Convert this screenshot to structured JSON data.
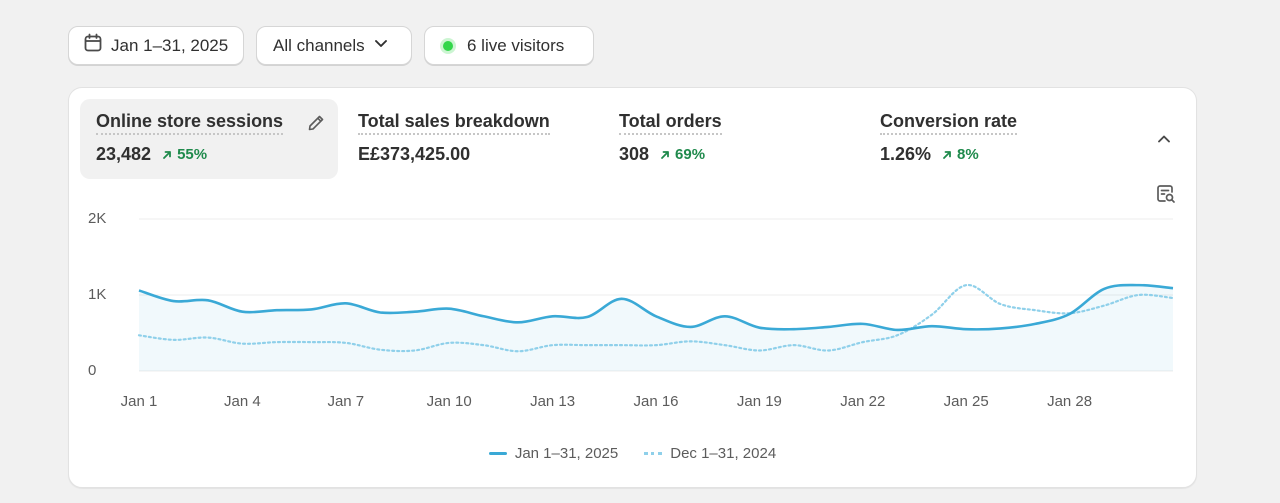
{
  "filters": {
    "date_range": "Jan 1–31, 2025",
    "channels": "All channels",
    "live_visitors": "6 live visitors"
  },
  "metrics": [
    {
      "title": "Online store sessions",
      "value": "23,482",
      "change": "55%",
      "active": true
    },
    {
      "title": "Total sales breakdown",
      "value": "E£373,425.00",
      "change": ""
    },
    {
      "title": "Total orders",
      "value": "308",
      "change": "69%"
    },
    {
      "title": "Conversion rate",
      "value": "1.26%",
      "change": "8%"
    }
  ],
  "colors": {
    "current_series": "#3aa9d6",
    "previous_series": "#8fd0ea",
    "positive_change": "#1f8a4c",
    "live_dot": "#32d64a"
  },
  "icons": {
    "date": "calendar-icon",
    "channels": "chevron-down-icon",
    "edit": "pencil-icon",
    "collapse": "chevron-up-icon",
    "report": "report-search-icon",
    "change": "arrow-up-right-icon"
  },
  "chart_data": {
    "type": "line",
    "y_ticks": [
      "2K",
      "1K",
      "0"
    ],
    "ylim": [
      0,
      2000
    ],
    "x": [
      1,
      2,
      3,
      4,
      5,
      6,
      7,
      8,
      9,
      10,
      11,
      12,
      13,
      14,
      15,
      16,
      17,
      18,
      19,
      20,
      21,
      22,
      23,
      24,
      25,
      26,
      27,
      28,
      29,
      30,
      31
    ],
    "x_tick_labels": [
      "Jan 1",
      "Jan 4",
      "Jan 7",
      "Jan 10",
      "Jan 13",
      "Jan 16",
      "Jan 19",
      "Jan 22",
      "Jan 25",
      "Jan 28"
    ],
    "x_tick_positions": [
      1,
      4,
      7,
      10,
      13,
      16,
      19,
      22,
      25,
      28
    ],
    "series": [
      {
        "name": "Jan 1–31, 2025",
        "style": "solid",
        "values": [
          1060,
          920,
          930,
          780,
          800,
          810,
          890,
          770,
          780,
          820,
          720,
          640,
          720,
          710,
          950,
          720,
          580,
          720,
          570,
          550,
          580,
          620,
          540,
          590,
          550,
          560,
          620,
          750,
          1080,
          1130,
          1090
        ]
      },
      {
        "name": "Dec 1–31, 2024",
        "style": "dotted",
        "values": [
          470,
          410,
          440,
          360,
          380,
          380,
          370,
          280,
          270,
          370,
          340,
          260,
          340,
          340,
          340,
          340,
          390,
          340,
          270,
          340,
          270,
          380,
          470,
          740,
          1130,
          880,
          800,
          760,
          860,
          1000,
          960
        ]
      }
    ],
    "grid": true,
    "legend_position": "bottom-center"
  },
  "legend": [
    "Jan 1–31, 2025",
    "Dec 1–31, 2024"
  ]
}
